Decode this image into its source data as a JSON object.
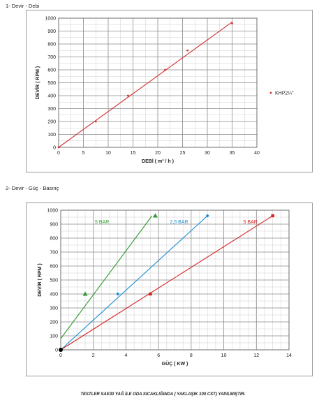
{
  "sections": {
    "first_title": "1- Devir - Debi",
    "second_title": "2- Devir - Güç - Basınç"
  },
  "footer_note": "TESTLER SAE30 YAĞ İLE ODA SICAKLIĞINDA ( YAKLAŞIK 100 CST) YAPILMIŞTIR.",
  "chart_data": [
    {
      "type": "line",
      "xlabel": "DEBİ ( m³ / h )",
      "ylabel": "DEVİR ( RPM )",
      "xlim": [
        0,
        40
      ],
      "ylim": [
        0,
        1000
      ],
      "x_ticks": [
        "0",
        "5",
        "10",
        "15",
        "20",
        "25",
        "30",
        "35",
        "40"
      ],
      "y_ticks": [
        "0",
        "100",
        "200",
        "300",
        "400",
        "500",
        "600",
        "700",
        "800",
        "900",
        "1000"
      ],
      "grid": true,
      "legend": "right",
      "series": [
        {
          "name": "KHP2¼\"",
          "color": "#d03030",
          "marker": "dot",
          "points": [
            [
              0,
              0
            ],
            [
              7.5,
              200
            ],
            [
              14,
              400
            ],
            [
              21.5,
              600
            ],
            [
              26,
              750
            ],
            [
              35,
              960
            ]
          ],
          "fit": [
            [
              0,
              0
            ],
            [
              35,
              970
            ]
          ]
        }
      ]
    },
    {
      "type": "line",
      "xlabel": "GÜÇ ( KW )",
      "ylabel": "DEVİR ( RPM )",
      "xlim": [
        0,
        14
      ],
      "ylim": [
        0,
        1000
      ],
      "x_ticks": [
        "0",
        "2",
        "4",
        "6",
        "8",
        "10",
        "12",
        "14"
      ],
      "y_ticks": [
        "0",
        "100",
        "200",
        "300",
        "400",
        "500",
        "600",
        "700",
        "800",
        "900",
        "1000"
      ],
      "grid": true,
      "series": [
        {
          "name": "5 BAR",
          "color": "#2e9a2e",
          "marker": "triangle",
          "points": [
            [
              1.5,
              400
            ],
            [
              5.8,
              960
            ]
          ],
          "fit": [
            [
              0,
              80
            ],
            [
              5.6,
              960
            ]
          ]
        },
        {
          "name": "2,5 BAR",
          "color": "#1a8fd0",
          "marker": "diamond",
          "points": [
            [
              3.5,
              400
            ],
            [
              9,
              960
            ]
          ],
          "fit": [
            [
              0,
              0
            ],
            [
              9,
              960
            ]
          ]
        },
        {
          "name": "5 BAR",
          "color": "#d82020",
          "marker": "square",
          "points": [
            [
              5.5,
              400
            ],
            [
              13,
              960
            ]
          ],
          "fit": [
            [
              0,
              0
            ],
            [
              13,
              960
            ]
          ]
        }
      ],
      "origin_marker": {
        "x": 0,
        "y": 0,
        "color": "#000000"
      }
    }
  ]
}
